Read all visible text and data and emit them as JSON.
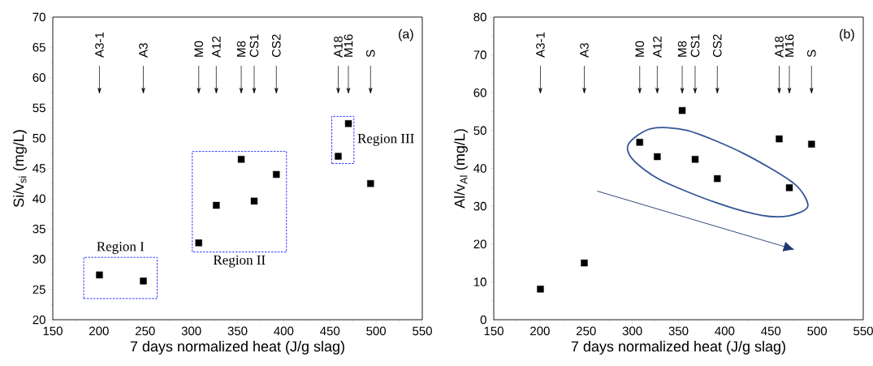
{
  "chart_data": [
    {
      "type": "scatter",
      "xlabel": "7 days normalized heat (J/g slag)",
      "ylabel": "Si/v$_{si}$ (mg/L)",
      "color": "#000000",
      "marker": "square",
      "x": [
        200.5,
        248,
        308,
        327,
        354,
        368,
        392,
        459,
        470,
        494
      ],
      "values": [
        27.4,
        26.4,
        32.7,
        38.9,
        46.5,
        39.6,
        44.0,
        47.0,
        52.4,
        42.5
      ],
      "xlim": [
        150,
        550
      ],
      "xticks": [
        150,
        200,
        250,
        300,
        350,
        400,
        450,
        500,
        550
      ],
      "ylim": [
        20,
        70
      ],
      "yticks": [
        20,
        25,
        30,
        35,
        40,
        45,
        50,
        55,
        60,
        65,
        70
      ],
      "annotations": [
        "(a)",
        "Region I",
        "Region II",
        "Region III",
        "A3-1",
        "A3",
        "M0",
        "A12",
        "M8",
        "CS1",
        "CS2",
        "A18",
        "M16",
        "S"
      ]
    },
    {
      "type": "scatter",
      "xlabel": "7 days normalized heat (J/g slag)",
      "ylabel": "Al/v$_{Al}$ (mg/L)",
      "color": "#000000",
      "marker": "square",
      "x": [
        200.5,
        248,
        308,
        327,
        354,
        368,
        392,
        459,
        470,
        494
      ],
      "values": [
        8.1,
        15.0,
        46.9,
        43.1,
        55.3,
        42.4,
        37.3,
        47.8,
        34.9,
        46.4
      ],
      "xlim": [
        150,
        550
      ],
      "xticks": [
        150,
        200,
        250,
        300,
        350,
        400,
        450,
        500,
        550
      ],
      "ylim": [
        0,
        80
      ],
      "yticks": [
        0,
        10,
        20,
        30,
        40,
        50,
        60,
        70,
        80
      ],
      "annotations": [
        "(b)",
        "A3-1",
        "A3",
        "M0",
        "A12",
        "M8",
        "CS1",
        "CS2",
        "A18",
        "M16",
        "S"
      ]
    }
  ]
}
